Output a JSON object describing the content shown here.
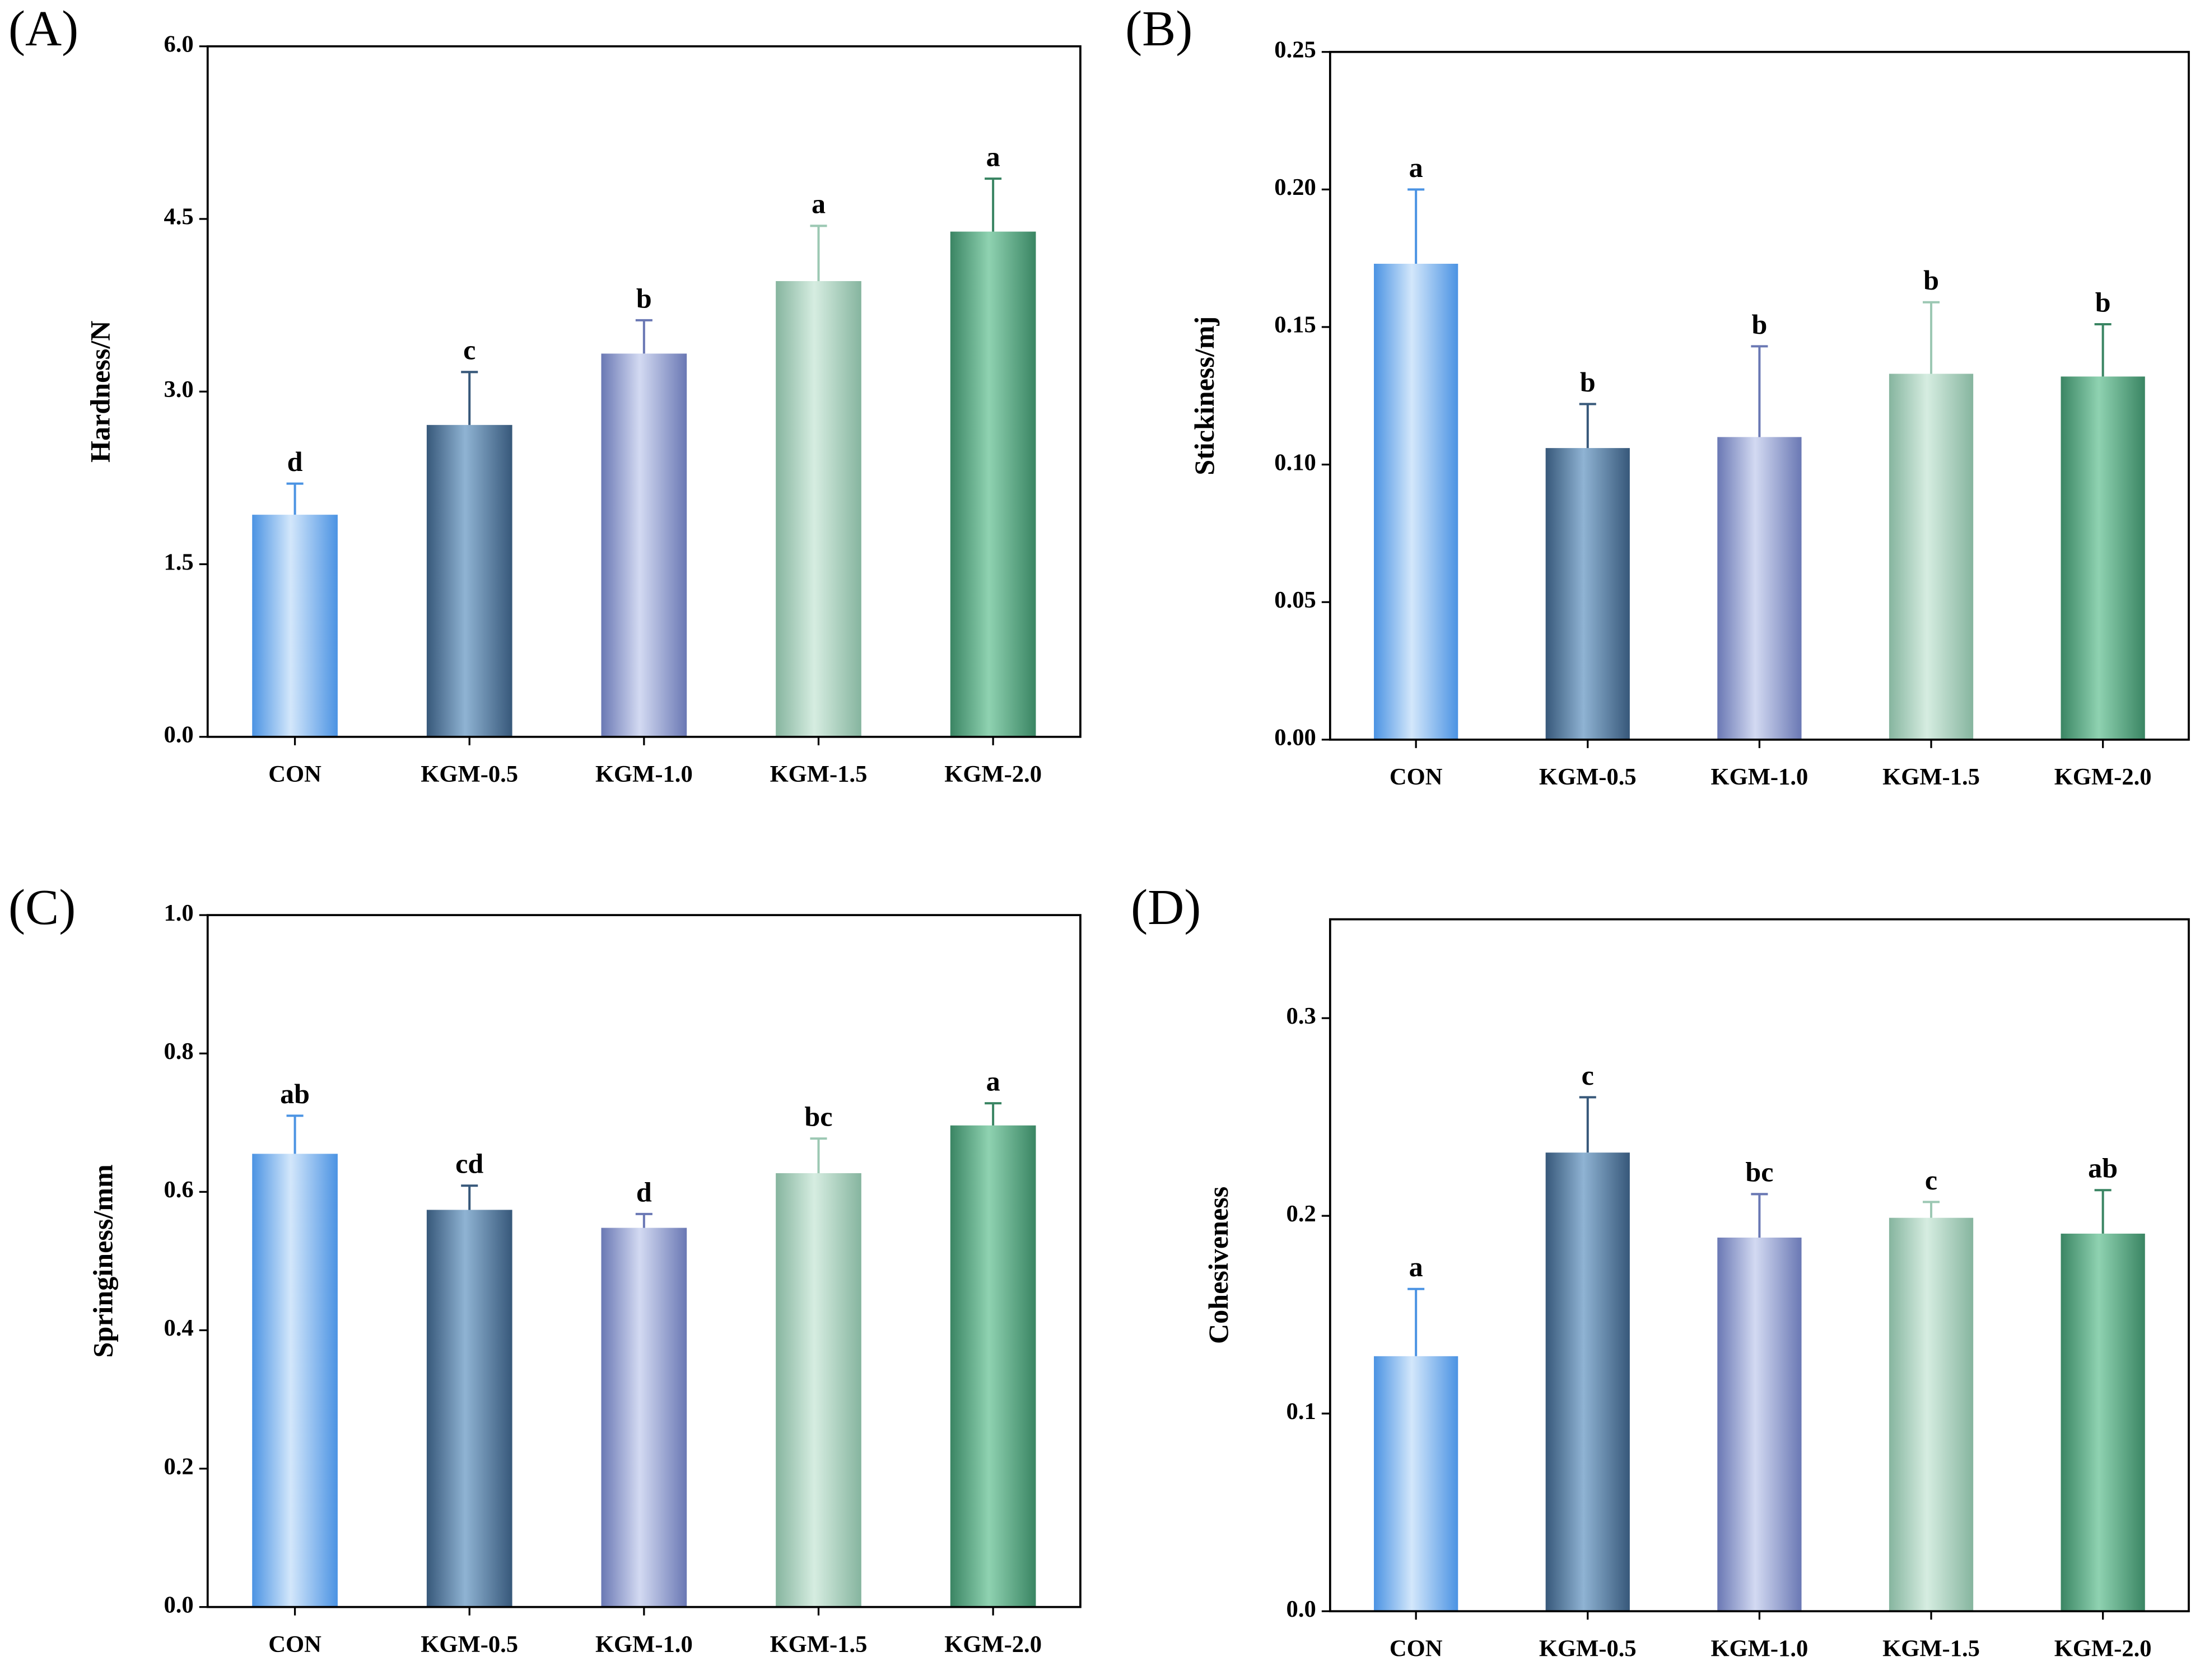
{
  "chart_data": [
    {
      "type": "bar",
      "panel_label": "(A)",
      "ylabel": "Hardness/N",
      "categories": [
        "CON",
        "KGM-0.5",
        "KGM-1.0",
        "KGM-1.5",
        "KGM-2.0"
      ],
      "values": [
        1.93,
        2.71,
        3.33,
        3.96,
        4.39
      ],
      "errors": [
        0.27,
        0.46,
        0.29,
        0.48,
        0.46
      ],
      "annotations": [
        "d",
        "c",
        "b",
        "a",
        "a"
      ],
      "colors": [
        [
          "#4b93e3",
          "#d3e7fb"
        ],
        [
          "#37587a",
          "#8fb3d3"
        ],
        [
          "#6a78b4",
          "#d3daf2"
        ],
        [
          "#86b59f",
          "#d6ede1"
        ],
        [
          "#3a8563",
          "#8fd2b1"
        ]
      ],
      "ylim": [
        0,
        6
      ],
      "yticks": [
        {
          "value": 0,
          "label": "0.0"
        },
        1.5,
        {
          "value": 3,
          "label": "3.0"
        },
        4.5,
        {
          "value": 6,
          "label": "6.0"
        }
      ]
    },
    {
      "type": "bar",
      "panel_label": "(B)",
      "ylabel": "Stickiness/mj",
      "categories": [
        "CON",
        "KGM-0.5",
        "KGM-1.0",
        "KGM-1.5",
        "KGM-2.0"
      ],
      "values": [
        0.173,
        0.106,
        0.11,
        0.133,
        0.132
      ],
      "errors": [
        0.027,
        0.016,
        0.033,
        0.026,
        0.019
      ],
      "annotations": [
        "a",
        "b",
        "b",
        "b",
        "b"
      ],
      "colors": [
        [
          "#4b93e3",
          "#d3e7fb"
        ],
        [
          "#37587a",
          "#8fb3d3"
        ],
        [
          "#6a78b4",
          "#d3daf2"
        ],
        [
          "#86b59f",
          "#d6ede1"
        ],
        [
          "#3a8563",
          "#8fd2b1"
        ]
      ],
      "ylim": [
        0,
        0.25
      ],
      "yticks": [
        {
          "value": 0,
          "label": "0.00"
        },
        0.05,
        {
          "value": 0.1,
          "label": "0.10"
        },
        0.15,
        {
          "value": 0.2,
          "label": "0.20"
        },
        0.25
      ]
    },
    {
      "type": "bar",
      "panel_label": "(C)",
      "ylabel": "Springiness/mm",
      "categories": [
        "CON",
        "KGM-0.5",
        "KGM-1.0",
        "KGM-1.5",
        "KGM-2.0"
      ],
      "values": [
        0.655,
        0.574,
        0.548,
        0.627,
        0.696
      ],
      "errors": [
        0.055,
        0.035,
        0.02,
        0.05,
        0.032
      ],
      "annotations": [
        "ab",
        "cd",
        "d",
        "bc",
        "a"
      ],
      "colors": [
        [
          "#4b93e3",
          "#d3e7fb"
        ],
        [
          "#37587a",
          "#8fb3d3"
        ],
        [
          "#6a78b4",
          "#d3daf2"
        ],
        [
          "#86b59f",
          "#d6ede1"
        ],
        [
          "#3a8563",
          "#8fd2b1"
        ]
      ],
      "ylim": [
        0,
        1
      ],
      "yticks": [
        {
          "value": 0,
          "label": "0.0"
        },
        0.2,
        0.4,
        0.6,
        0.8,
        {
          "value": 1,
          "label": "1.0"
        }
      ]
    },
    {
      "type": "bar",
      "panel_label": "(D)",
      "ylabel": "Cohesiveness",
      "categories": [
        "CON",
        "KGM-0.5",
        "KGM-1.0",
        "KGM-1.5",
        "KGM-2.0"
      ],
      "values": [
        0.129,
        0.232,
        0.189,
        0.199,
        0.191
      ],
      "errors": [
        0.034,
        0.028,
        0.022,
        0.008,
        0.022
      ],
      "annotations": [
        "a",
        "c",
        "bc",
        "c",
        "ab"
      ],
      "colors": [
        [
          "#4b93e3",
          "#d3e7fb"
        ],
        [
          "#37587a",
          "#8fb3d3"
        ],
        [
          "#6a78b4",
          "#d3daf2"
        ],
        [
          "#86b59f",
          "#d6ede1"
        ],
        [
          "#3a8563",
          "#8fd2b1"
        ]
      ],
      "ylim": [
        0,
        0.35
      ],
      "yticks": [
        {
          "value": 0,
          "label": "0.0"
        },
        0.1,
        0.2,
        0.3
      ]
    }
  ]
}
